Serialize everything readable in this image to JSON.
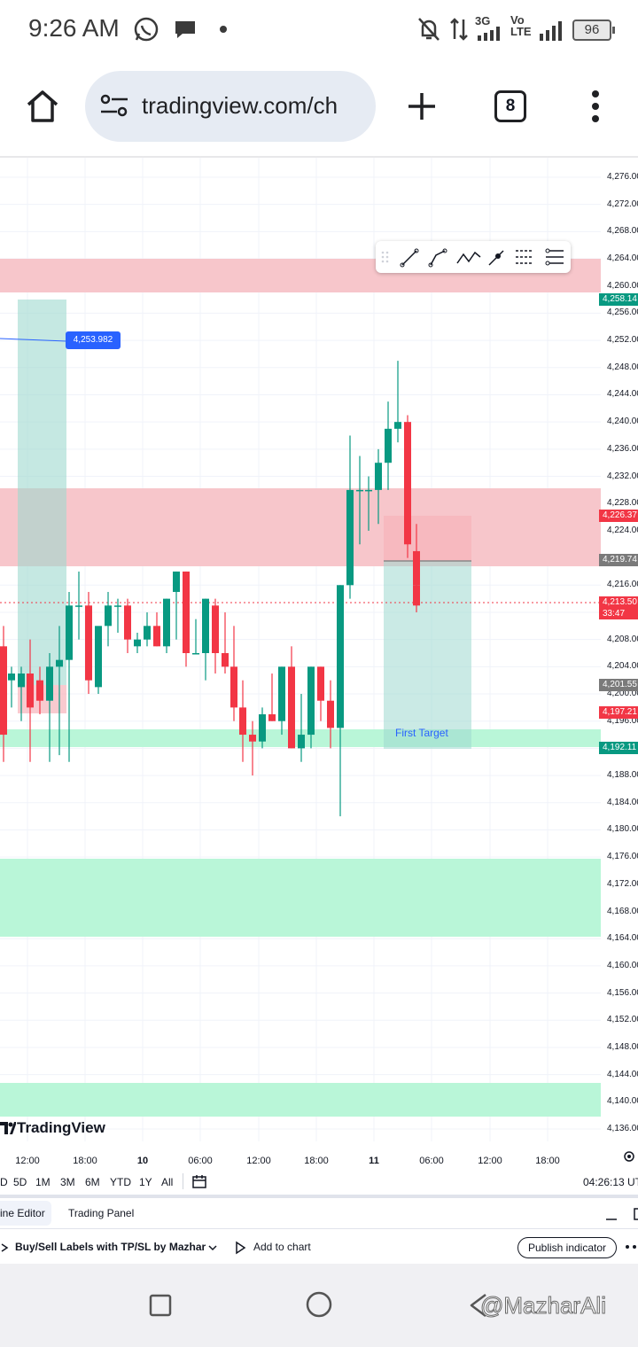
{
  "status_bar": {
    "time": "9:26 AM",
    "battery": "96",
    "network_3g": "3G",
    "network_volte": "Vo\nLTE",
    "icons": [
      "whatsapp-icon",
      "chat-bubble-icon",
      "dot-icon",
      "bell-off-icon",
      "data-arrows-icon",
      "signal-icon",
      "signal-icon",
      "battery-icon"
    ]
  },
  "browser": {
    "url": "tradingview.com/ch",
    "tab_count": "8",
    "icons": [
      "home-icon",
      "site-settings-icon",
      "new-tab-icon",
      "menu-dots-icon"
    ]
  },
  "chart": {
    "labels": {
      "price_line_value": "4,253.982",
      "first_target": "First Target",
      "brand": "TradingView"
    },
    "price_axis": [
      "4,276.00",
      "4,272.00",
      "4,268.00",
      "4,264.00",
      "4,260.00",
      "4,256.00",
      "4,252.00",
      "4,248.00",
      "4,244.00",
      "4,240.00",
      "4,236.00",
      "4,232.00",
      "4,228.00",
      "4,224.00",
      "4,216.00",
      "4,208.00",
      "4,204.00",
      "4,200.00",
      "4,196.00",
      "4,188.00",
      "4,184.00",
      "4,180.00",
      "4,176.00",
      "4,172.00",
      "4,168.00",
      "4,164.00",
      "4,160.00",
      "4,156.00",
      "4,152.00",
      "4,148.00",
      "4,144.00",
      "4,140.00",
      "4,136.00"
    ],
    "price_badges": {
      "level_4258": "4,258.14",
      "level_4226": "4,226.37",
      "level_4219": "4,219.74",
      "last_price": "4,213.50",
      "countdown": "33:47",
      "level_4201": "4,201.55",
      "level_4197": "4,197.21",
      "level_4192": "4,192.11"
    },
    "time_axis": [
      "12:00",
      "18:00",
      "10",
      "06:00",
      "12:00",
      "18:00",
      "11",
      "06:00",
      "12:00",
      "18:00"
    ],
    "colors": {
      "up": "#089981",
      "down": "#f23645",
      "supply_zone": "#f7c6cb",
      "demand_zone": "#b9f6d8",
      "accent": "#2962ff"
    }
  },
  "range_bar": {
    "items": [
      "D",
      "5D",
      "1M",
      "3M",
      "6M",
      "YTD",
      "1Y",
      "All"
    ],
    "clock": "04:26:13 UT"
  },
  "panel_tabs": {
    "pine_editor": "ine Editor",
    "trading_panel": "Trading Panel"
  },
  "indicator_bar": {
    "name": "Buy/Sell Labels with TP/SL by Mazhar",
    "add_to_chart": "Add to chart",
    "publish": "Publish indicator"
  },
  "watermark": "@MazharAli"
}
